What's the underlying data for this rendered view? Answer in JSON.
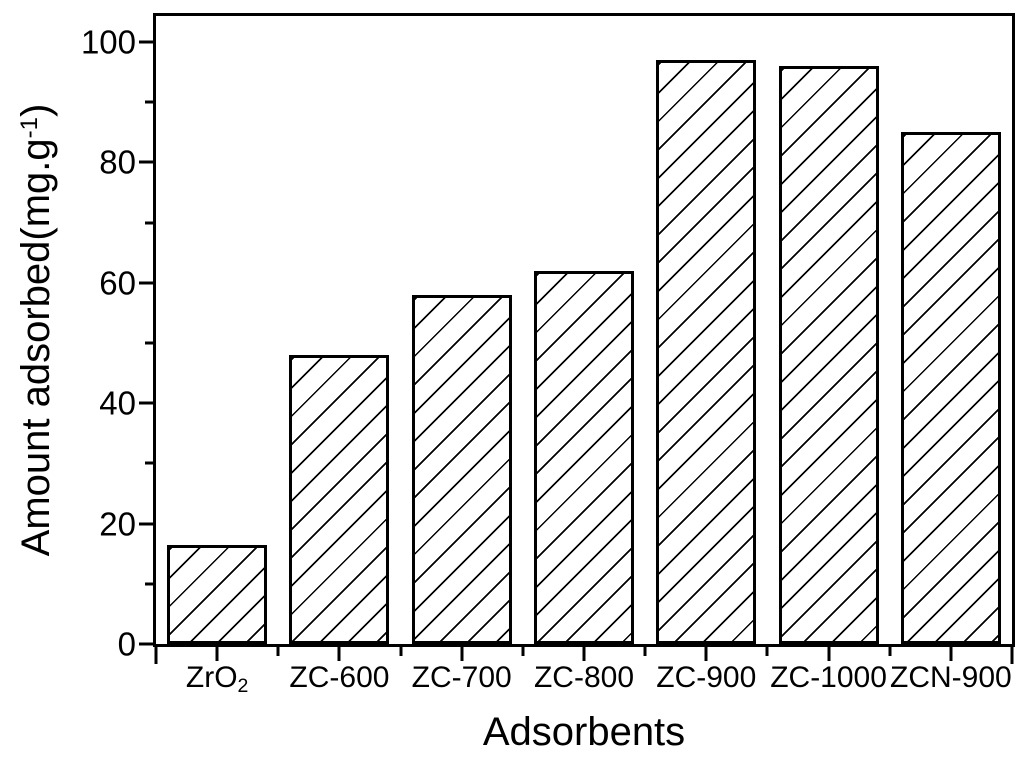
{
  "chart_data": {
    "type": "bar",
    "title": "",
    "xlabel": "Adsorbents",
    "ylabel": "Amount adsorbed(mg.g⁻¹)",
    "ylabel_parts": {
      "prefix": "Amount adsorbed(mg.g",
      "superscript": "-1",
      "suffix": ")"
    },
    "categories": [
      "ZrO₂",
      "ZC-600",
      "ZC-700",
      "ZC-800",
      "ZC-900",
      "ZC-1000",
      "ZCN-900"
    ],
    "categories_rich": [
      {
        "text": "ZrO",
        "sub": "2"
      },
      {
        "text": "ZC-600"
      },
      {
        "text": "ZC-700"
      },
      {
        "text": "ZC-800"
      },
      {
        "text": "ZC-900"
      },
      {
        "text": "ZC-1000"
      },
      {
        "text": "ZCN-900"
      }
    ],
    "values": [
      16.5,
      48,
      58,
      62,
      97,
      96,
      85
    ],
    "ylim": [
      0,
      104.3
    ],
    "yticks_major": [
      0,
      20,
      40,
      60,
      80,
      100
    ],
    "yticks_minor": [
      10,
      30,
      50,
      70,
      90
    ],
    "grid": false,
    "legend": null,
    "bar_fill": "diagonal-hatch",
    "bar_border_color": "#000000",
    "hatch_color": "#000000",
    "background": "#ffffff"
  }
}
